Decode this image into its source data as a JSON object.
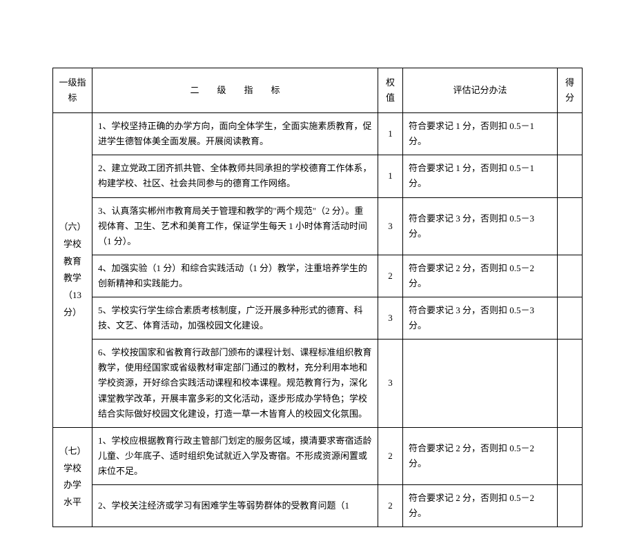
{
  "headers": {
    "primary": "一级指标",
    "secondary": "二　　级　　指　　标",
    "weight": "权值",
    "method": "评估记分办法",
    "score": "得分"
  },
  "groups": [
    {
      "label": "（六）\n学校\n教育\n教学\n（13 分）",
      "rows": [
        {
          "secondary": "1、学校坚持正确的办学方向，面向全体学生，全面实施素质教育，促进学生德智体美全面发展。开展阅读教育。",
          "weight": "1",
          "method": "符合要求记 1 分，否则扣 0.5－1 分。",
          "score": ""
        },
        {
          "secondary": "2、建立党政工团齐抓共管、全体教师共同承担的学校德育工作体系，构建学校、社区、社会共同参与的德育工作网络。",
          "weight": "1",
          "method": "符合要求记 1 分，否则扣 0.5－1 分。",
          "score": ""
        },
        {
          "secondary": "3、认真落实郴州市教育局关于管理和教学的\"两个规范\"（2 分）。重视体育、卫生、艺术和美育工作，保证学生每天 1 小时体育活动时间（1 分）。",
          "weight": "3",
          "method": "符合要求记 3 分，否则扣 0.5－3 分。",
          "score": ""
        },
        {
          "secondary": "4、加强实验（1 分）和综合实践活动（1 分）教学，注重培养学生的创新精神和实践能力。",
          "weight": "2",
          "method": "符合要求记 2 分，否则扣 0.5－2 分。",
          "score": ""
        },
        {
          "secondary": "5、学校实行学生综合素质考核制度，广泛开展多种形式的德育、科技、文艺、体育活动，加强校园文化建设。",
          "weight": "3",
          "method": "符合要求记 3 分，否则扣 0.5－3 分。",
          "score": ""
        },
        {
          "secondary": "6、学校按国家和省教育行政部门颁布的课程计划、课程标准组织教育教学，使用经国家或省级教材审定部门通过的教材，充分利用本地和学校资源，开好综合实践活动课程和校本课程。规范教育行为，深化课堂教学改革，开展丰富多彩的文化活动，逐步形成办学特色；学校结合实际做好校园文化建设，打造一草一木皆育人的校园文化氛围。",
          "weight": "3",
          "method": "",
          "score": ""
        }
      ]
    },
    {
      "label": "（七）\n学校\n办学\n水平",
      "rows": [
        {
          "secondary": "1、学校应根据教育行政主管部门划定的服务区域，摸清要求寄宿适龄儿童、少年底子、适时组织免试就近入学及寄宿。不形成资源闲置或床位不足。",
          "weight": "2",
          "method": "符合要求记 2 分，否则扣 0.5－2 分。",
          "score": ""
        },
        {
          "secondary": "2、学校关注经济或学习有困难学生等弱势群体的受教育问题（1",
          "weight": "2",
          "method": "符合要求记 2 分，否则扣 0.5－2 分。",
          "score": ""
        }
      ]
    }
  ]
}
